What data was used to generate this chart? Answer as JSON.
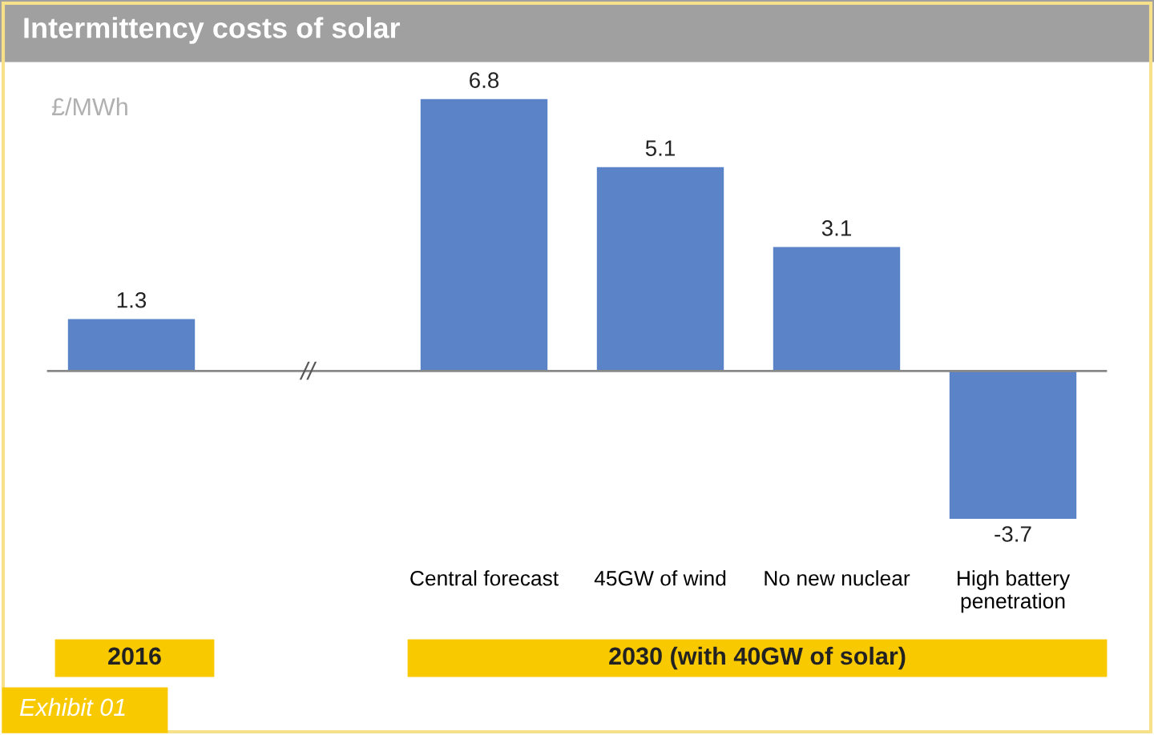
{
  "chart_data": {
    "type": "bar",
    "title": "Intermittency costs of solar",
    "ylabel": "£/MWh",
    "categories": [
      null,
      null,
      "Central forecast",
      "45GW of wind",
      "No new nuclear",
      "High battery\npenetration"
    ],
    "values": [
      1.3,
      null,
      6.8,
      5.1,
      3.1,
      -3.7
    ],
    "color": "#5b84c8",
    "data_labels": true,
    "tick_labels": "x",
    "grid": false,
    "annotations": [
      "2016",
      "2030 (with 40GW of solar)",
      "//",
      "Exhibit 01"
    ]
  }
}
